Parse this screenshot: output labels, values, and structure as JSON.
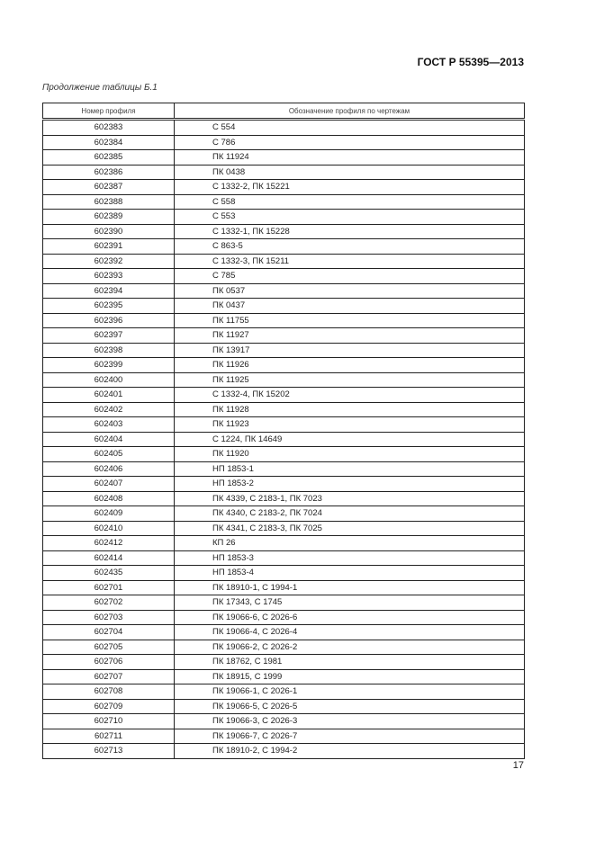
{
  "header": {
    "document_code": "ГОСТ Р 55395—2013"
  },
  "caption": "Продолжение таблицы Б.1",
  "table": {
    "columns": [
      "Номер профиля",
      "Обозначение профиля по чертежам"
    ],
    "rows": [
      [
        "602383",
        "С 554"
      ],
      [
        "602384",
        "С 786"
      ],
      [
        "602385",
        "ПК 11924"
      ],
      [
        "602386",
        "ПК 0438"
      ],
      [
        "602387",
        "С 1332-2, ПК 15221"
      ],
      [
        "602388",
        "С 558"
      ],
      [
        "602389",
        "С 553"
      ],
      [
        "602390",
        "С 1332-1, ПК 15228"
      ],
      [
        "602391",
        "С 863-5"
      ],
      [
        "602392",
        "С 1332-3, ПК 15211"
      ],
      [
        "602393",
        "С 785"
      ],
      [
        "602394",
        "ПК 0537"
      ],
      [
        "602395",
        "ПК 0437"
      ],
      [
        "602396",
        "ПК 11755"
      ],
      [
        "602397",
        "ПК 11927"
      ],
      [
        "602398",
        "ПК 13917"
      ],
      [
        "602399",
        "ПК 11926"
      ],
      [
        "602400",
        "ПК 11925"
      ],
      [
        "602401",
        "С 1332-4, ПК 15202"
      ],
      [
        "602402",
        "ПК 11928"
      ],
      [
        "602403",
        "ПК 11923"
      ],
      [
        "602404",
        "С 1224, ПК 14649"
      ],
      [
        "602405",
        "ПК 11920"
      ],
      [
        "602406",
        "НП 1853-1"
      ],
      [
        "602407",
        "НП 1853-2"
      ],
      [
        "602408",
        "ПК 4339, С 2183-1, ПК 7023"
      ],
      [
        "602409",
        "ПК 4340, С 2183-2, ПК  7024"
      ],
      [
        "602410",
        "ПК 4341, С  2183-3, ПК 7025"
      ],
      [
        "602412",
        "КП 26"
      ],
      [
        "602414",
        "НП 1853-3"
      ],
      [
        "602435",
        "НП 1853-4"
      ],
      [
        "602701",
        "ПК 18910-1, С 1994-1"
      ],
      [
        "602702",
        "ПК 17343, С 1745"
      ],
      [
        "602703",
        "ПК 19066-6, С 2026-6"
      ],
      [
        "602704",
        "ПК 19066-4, С 2026-4"
      ],
      [
        "602705",
        "ПК 19066-2, С 2026-2"
      ],
      [
        "602706",
        "ПК 18762, С 1981"
      ],
      [
        "602707",
        "ПК 18915, С 1999"
      ],
      [
        "602708",
        "ПК 19066-1, С 2026-1"
      ],
      [
        "602709",
        "ПК 19066-5, С 2026-5"
      ],
      [
        "602710",
        "ПК 19066-3, С 2026-3"
      ],
      [
        "602711",
        "ПК 19066-7, С 2026-7"
      ],
      [
        "602713",
        "ПК 18910-2, С 1994-2"
      ]
    ]
  },
  "footer": {
    "page_number": "17"
  }
}
